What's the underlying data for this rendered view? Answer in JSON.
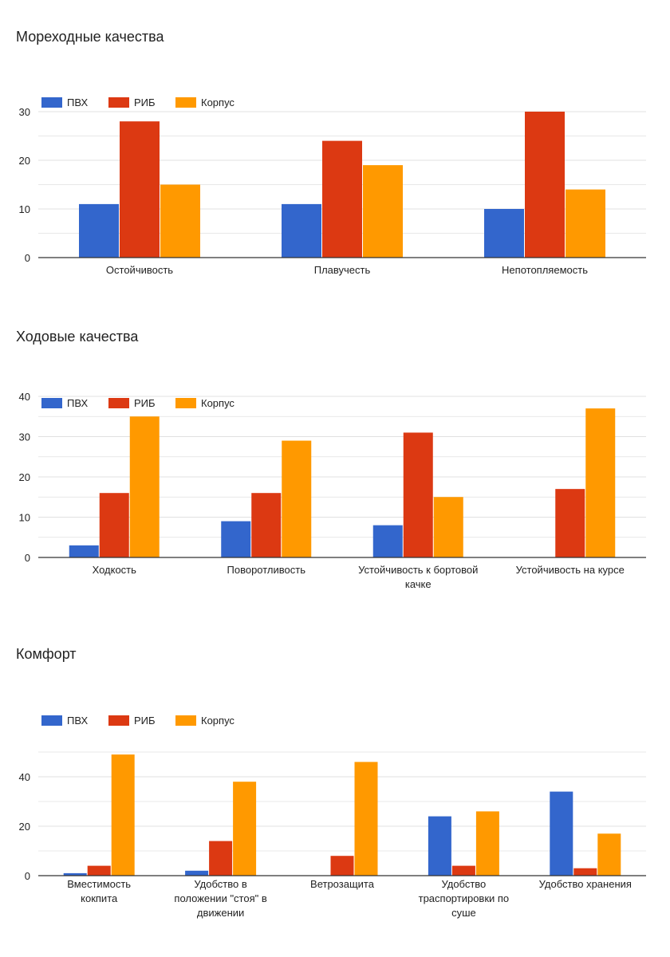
{
  "chart_data": [
    {
      "type": "bar",
      "title": "Мореходные качества",
      "categories": [
        [
          "Остойчивость"
        ],
        [
          "Плавучесть"
        ],
        [
          "Непотопляемость"
        ]
      ],
      "series": [
        {
          "name": "ПВХ",
          "values": [
            11,
            11,
            10
          ]
        },
        {
          "name": "РИБ",
          "values": [
            28,
            24,
            30
          ]
        },
        {
          "name": "Корпус",
          "values": [
            15,
            19,
            14
          ]
        }
      ],
      "yticks": [
        0,
        10,
        20,
        30
      ],
      "ylim": [
        0,
        30
      ],
      "grid": true,
      "legend": "top-left",
      "xlabel": "",
      "ylabel": ""
    },
    {
      "type": "bar",
      "title": "Ходовые качества",
      "categories": [
        [
          "Ходкость"
        ],
        [
          "Поворотливость"
        ],
        [
          "Устойчивость к бортовой",
          "качке"
        ],
        [
          "Устойчивость на курсе"
        ]
      ],
      "series": [
        {
          "name": "ПВХ",
          "values": [
            3,
            9,
            8,
            0
          ]
        },
        {
          "name": "РИБ",
          "values": [
            16,
            16,
            31,
            17
          ]
        },
        {
          "name": "Корпус",
          "values": [
            35,
            29,
            15,
            37
          ]
        }
      ],
      "yticks": [
        0,
        10,
        20,
        30,
        40
      ],
      "ylim": [
        0,
        40
      ],
      "grid": true,
      "legend": "top-left",
      "xlabel": "",
      "ylabel": ""
    },
    {
      "type": "bar",
      "title": "Комфорт",
      "categories": [
        [
          "Вместимость",
          "кокпита"
        ],
        [
          "Удобство в",
          "положении \"стоя\" в",
          "движении"
        ],
        [
          "Ветрозащита"
        ],
        [
          "Удобство",
          "траспортировки по",
          "суше"
        ],
        [
          "Удобство хранения"
        ]
      ],
      "series": [
        {
          "name": "ПВХ",
          "values": [
            1,
            2,
            0,
            24,
            34
          ]
        },
        {
          "name": "РИБ",
          "values": [
            4,
            14,
            8,
            4,
            3
          ]
        },
        {
          "name": "Корпус",
          "values": [
            49,
            38,
            46,
            26,
            17
          ]
        }
      ],
      "yticks": [
        0,
        20,
        40
      ],
      "ylim": [
        0,
        50
      ],
      "grid": true,
      "legend": "top-left",
      "xlabel": "",
      "ylabel": ""
    }
  ],
  "colors": {
    "series": [
      "#3366cc",
      "#dc3912",
      "#ff9900"
    ],
    "grid": "#e0e0e0",
    "axis": "#333333"
  }
}
